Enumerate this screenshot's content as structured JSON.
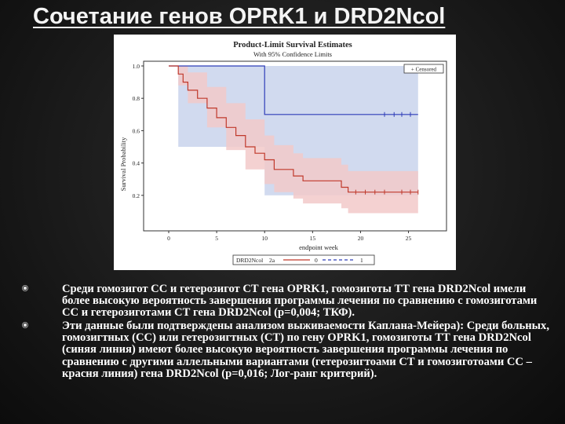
{
  "title": "Сочетание генов OPRK1 и DRD2Ncol",
  "chart_data": {
    "type": "line",
    "subtype": "kaplan-meier survival estimate",
    "title": "Product-Limit Survival Estimates",
    "subtitle": "With 95% Confidence Limits",
    "xlabel": "endpoint week",
    "ylabel": "Survival Probability",
    "xlim": [
      0,
      27
    ],
    "ylim": [
      0,
      1.0
    ],
    "x_ticks": [
      0,
      5,
      10,
      15,
      20,
      25
    ],
    "y_ticks": [
      0.2,
      0.4,
      0.6,
      0.8,
      1.0
    ],
    "censored_legend": "+ Censored",
    "legend_placement": "bottom",
    "legend_title": "DRD2Ncol",
    "legend_title_suffix": "2a",
    "series": [
      {
        "name": "0",
        "color": "#c0392b",
        "band_color": "#f2c9c9",
        "steps": [
          [
            0,
            1.0
          ],
          [
            1,
            0.95
          ],
          [
            1.5,
            0.9
          ],
          [
            2,
            0.85
          ],
          [
            3,
            0.8
          ],
          [
            4,
            0.74
          ],
          [
            5,
            0.68
          ],
          [
            6,
            0.62
          ],
          [
            7,
            0.57
          ],
          [
            8,
            0.5
          ],
          [
            9,
            0.46
          ],
          [
            10,
            0.42
          ],
          [
            11,
            0.36
          ],
          [
            13,
            0.32
          ],
          [
            14,
            0.29
          ],
          [
            18,
            0.25
          ],
          [
            18.7,
            0.22
          ],
          [
            26,
            0.22
          ]
        ],
        "lower": [
          [
            0,
            1.0
          ],
          [
            1,
            0.88
          ],
          [
            2,
            0.77
          ],
          [
            4,
            0.62
          ],
          [
            6,
            0.48
          ],
          [
            8,
            0.36
          ],
          [
            10,
            0.27
          ],
          [
            11,
            0.22
          ],
          [
            13,
            0.18
          ],
          [
            14,
            0.15
          ],
          [
            18,
            0.12
          ],
          [
            18.7,
            0.09
          ],
          [
            26,
            0.09
          ]
        ],
        "upper": [
          [
            0,
            1.0
          ],
          [
            1,
            1.0
          ],
          [
            2,
            0.96
          ],
          [
            4,
            0.87
          ],
          [
            6,
            0.77
          ],
          [
            8,
            0.67
          ],
          [
            10,
            0.57
          ],
          [
            11,
            0.51
          ],
          [
            13,
            0.46
          ],
          [
            14,
            0.43
          ],
          [
            18,
            0.39
          ],
          [
            18.7,
            0.35
          ],
          [
            26,
            0.35
          ]
        ],
        "censored_x": [
          19.5,
          20.5,
          21.5,
          22.5,
          24.3,
          25.2,
          26
        ]
      },
      {
        "name": "1",
        "color": "#2e3db8",
        "band_color": "#c9d3ec",
        "steps": [
          [
            0,
            1.0
          ],
          [
            10,
            1.0
          ],
          [
            10,
            0.7
          ],
          [
            26,
            0.7
          ]
        ],
        "lower": [
          [
            0,
            1.0
          ],
          [
            1,
            0.5
          ],
          [
            10,
            0.5
          ],
          [
            10,
            0.2
          ],
          [
            26,
            0.2
          ]
        ],
        "upper": [
          [
            0,
            1.0
          ],
          [
            26,
            1.0
          ]
        ],
        "censored_x": [
          22.5,
          23.5,
          24.3,
          25.2
        ]
      }
    ]
  },
  "bullets": [
    "Среди гомозигот СС и гетерозигот СТ гена OPRK1, гомозиготы ТТ гена DRD2Ncol имели более высокую вероятность завершения программы лечения по сравнению с гомозиготами СС и гетерозиготами СТ гена DRD2Ncol (p=0,004; ТКФ).",
    "Эти данные были подтверждены анализом выживаемости Каплана-Мейера): Среди больных, гомозигтных (СС) или гетерозигтных (СТ) по гену OPRK1, гомозиготы ТТ гена DRD2Ncol (синяя линия) имеют более высокую вероятность завершения программы лечения по сравнению с другими аллельными вариантами (гетерозигтоами СТ и гомозиготоами СС – красня линия) гена DRD2Ncol (p=0,016; Лог-ранг критерий)."
  ]
}
